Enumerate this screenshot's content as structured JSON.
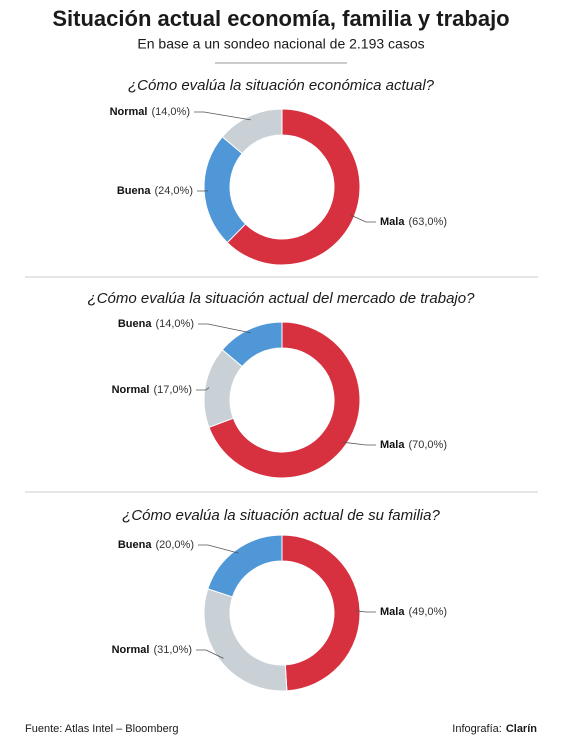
{
  "title": "Situación actual economía, familia y trabajo",
  "subtitle": "En base a un sondeo nacional de 2.193 casos",
  "chart_data": [
    {
      "type": "pie",
      "title": "¿Cómo evalúa la situación económica actual?",
      "categories": [
        "Mala",
        "Buena",
        "Normal"
      ],
      "values": [
        63,
        24,
        14
      ],
      "value_labels": [
        "(63,0%)",
        "(24,0%)",
        "(14,0%)"
      ],
      "colors": [
        "#d7303f",
        "#4f97d6",
        "#c9d0d6"
      ]
    },
    {
      "type": "pie",
      "title": "¿Cómo evalúa la situación actual del mercado de trabajo?",
      "categories": [
        "Mala",
        "Normal",
        "Buena"
      ],
      "values": [
        70,
        17,
        14
      ],
      "value_labels": [
        "(70,0%)",
        "(17,0%)",
        "(14,0%)"
      ],
      "colors": [
        "#d7303f",
        "#c9d0d6",
        "#4f97d6"
      ]
    },
    {
      "type": "pie",
      "title": "¿Cómo evalúa la situación actual de su familia?",
      "categories": [
        "Mala",
        "Normal",
        "Buena"
      ],
      "values": [
        49,
        31,
        20
      ],
      "value_labels": [
        "(49,0%)",
        "(31,0%)",
        "(20,0%)"
      ],
      "colors": [
        "#d7303f",
        "#c9d0d6",
        "#4f97d6"
      ]
    }
  ],
  "source": "Fuente: Atlas Intel – Bloomberg",
  "credit": {
    "label": "Infografía:",
    "brand": "Clarín"
  }
}
